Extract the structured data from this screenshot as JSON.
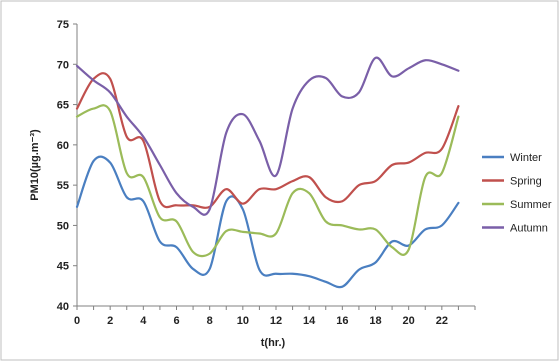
{
  "chart_data": {
    "type": "line",
    "title": "",
    "xlabel": "t(hr.)",
    "ylabel": "PM10(µg.m⁻³)",
    "xlim": [
      0,
      24
    ],
    "ylim": [
      40,
      75
    ],
    "x_ticks": [
      "0",
      "2",
      "4",
      "6",
      "8",
      "10",
      "12",
      "14",
      "16",
      "18",
      "20",
      "22"
    ],
    "y_ticks": [
      "40",
      "45",
      "50",
      "55",
      "60",
      "65",
      "70",
      "75"
    ],
    "grid": false,
    "legend": "right",
    "x": [
      0,
      1,
      2,
      3,
      4,
      5,
      6,
      7,
      8,
      9,
      10,
      11,
      12,
      13,
      14,
      15,
      16,
      17,
      18,
      19,
      20,
      21,
      22,
      23
    ],
    "series": [
      {
        "name": "Winter",
        "color": "#4a7fc1",
        "values": [
          52.3,
          58.0,
          57.8,
          53.5,
          53.0,
          48.0,
          47.3,
          44.6,
          44.6,
          53.0,
          52.0,
          44.5,
          44.0,
          44.0,
          43.7,
          43.0,
          42.4,
          44.5,
          45.4,
          48.0,
          47.5,
          49.5,
          50.0,
          52.8
        ]
      },
      {
        "name": "Spring",
        "color": "#c0504d",
        "values": [
          64.5,
          68.2,
          68.2,
          61.0,
          60.5,
          53.0,
          52.5,
          52.5,
          52.3,
          54.5,
          52.7,
          54.5,
          54.5,
          55.5,
          56.0,
          53.5,
          53.0,
          55.0,
          55.5,
          57.5,
          57.8,
          59.0,
          59.5,
          64.8
        ]
      },
      {
        "name": "Summer",
        "color": "#9bbb59",
        "values": [
          63.5,
          64.5,
          64.2,
          56.5,
          56.0,
          51.0,
          50.5,
          46.7,
          46.5,
          49.3,
          49.2,
          49.0,
          49.0,
          54.0,
          54.0,
          50.5,
          50.0,
          49.5,
          49.5,
          47.3,
          47.0,
          56.0,
          56.5,
          63.5
        ]
      },
      {
        "name": "Autumn",
        "color": "#7a5fa8",
        "values": [
          69.8,
          68.0,
          66.5,
          63.5,
          61.0,
          57.5,
          54.0,
          52.3,
          52.0,
          61.5,
          63.8,
          60.5,
          56.2,
          64.5,
          68.0,
          68.3,
          66.0,
          66.5,
          70.8,
          68.5,
          69.5,
          70.5,
          70.0,
          69.2
        ]
      }
    ]
  }
}
